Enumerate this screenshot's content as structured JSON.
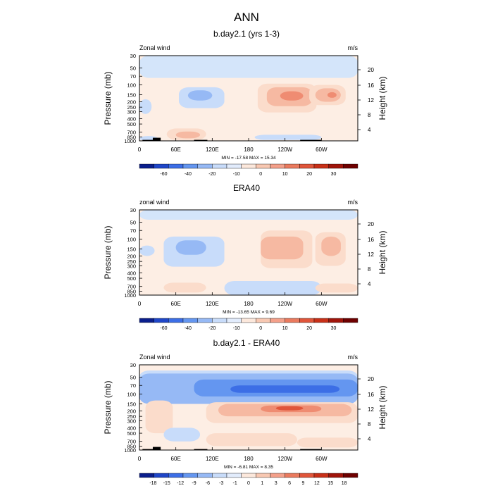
{
  "title": "ANN",
  "chart_data": [
    {
      "type": "heatmap",
      "title": "b.day2.1 (yrs 1-3)",
      "left_label": "Zonal wind",
      "right_label": "m/s",
      "ylabel": "Pressure (mb)",
      "ylabel_right": "Height (km)",
      "xticks": [
        "0",
        "60E",
        "120E",
        "180",
        "120W",
        "60W"
      ],
      "yticks": [
        "30",
        "50",
        "70",
        "100",
        "150",
        "200",
        "250",
        "300",
        "400",
        "500",
        "700",
        "850",
        "1000"
      ],
      "yticks_right": [
        "20",
        "16",
        "12",
        "8",
        "4"
      ],
      "stats": "MIN = -17.58   MAX =  15.34",
      "colorbar_labels": [
        "-60",
        "-40",
        "-20",
        "-10",
        "0",
        "10",
        "20",
        "30"
      ],
      "colorbar_colors": [
        "#0a1e8c",
        "#1f46c8",
        "#3c6ee6",
        "#6496f0",
        "#96b9f5",
        "#c8dcfa",
        "#e2ecfc",
        "#fce8dc",
        "#f8c8b2",
        "#f4a08a",
        "#ea7a5e",
        "#e0553a",
        "#c83018",
        "#a0140a",
        "#6e0000"
      ],
      "blobs": [
        {
          "lon": 0,
          "lon2": 360,
          "p": 30,
          "p2": 75,
          "color": "#d4e5fa"
        },
        {
          "lon": 195,
          "lon2": 292,
          "p": 95,
          "p2": 310,
          "color": "#fbdccb"
        },
        {
          "lon": 210,
          "lon2": 285,
          "p": 110,
          "p2": 240,
          "color": "#f6b9a2"
        },
        {
          "lon": 232,
          "lon2": 270,
          "p": 130,
          "p2": 190,
          "color": "#ef8c72"
        },
        {
          "lon": 280,
          "lon2": 340,
          "p": 100,
          "p2": 230,
          "color": "#fbdccb"
        },
        {
          "lon": 290,
          "lon2": 332,
          "p": 115,
          "p2": 200,
          "color": "#f6b9a2"
        },
        {
          "lon": 310,
          "lon2": 325,
          "p": 135,
          "p2": 170,
          "color": "#ef8c72"
        },
        {
          "lon": 65,
          "lon2": 140,
          "p": 110,
          "p2": 260,
          "color": "#c8dcfa"
        },
        {
          "lon": 80,
          "lon2": 120,
          "p": 125,
          "p2": 190,
          "color": "#96b9f5"
        },
        {
          "lon": 0,
          "lon2": 20,
          "p": 180,
          "p2": 330,
          "color": "#c8dcfa"
        },
        {
          "lon": 45,
          "lon2": 110,
          "p": 600,
          "p2": 960,
          "color": "#fbdccb"
        },
        {
          "lon": 60,
          "lon2": 100,
          "p": 680,
          "p2": 900,
          "color": "#f6b9a2"
        },
        {
          "lon": 190,
          "lon2": 300,
          "p": 780,
          "p2": 960,
          "color": "#c8dcfa"
        },
        {
          "lon": 0,
          "lon2": 30,
          "p": 820,
          "p2": 1000,
          "color": "#c8dcfa"
        }
      ],
      "topography": [
        {
          "lon": 5,
          "lon2": 28,
          "p": 960
        },
        {
          "lon": 22,
          "lon2": 35,
          "p": 880
        },
        {
          "lon": 90,
          "lon2": 112,
          "p": 960
        },
        {
          "lon": 265,
          "lon2": 300,
          "p": 960
        }
      ]
    },
    {
      "type": "heatmap",
      "title": "ERA40",
      "left_label": "zonal wind",
      "right_label": "m/s",
      "ylabel": "Pressure (mb)",
      "ylabel_right": "Height (km)",
      "xticks": [
        "0",
        "60E",
        "120E",
        "180",
        "120W",
        "60W"
      ],
      "yticks": [
        "30",
        "50",
        "70",
        "100",
        "150",
        "200",
        "250",
        "300",
        "400",
        "500",
        "700",
        "850",
        "1000"
      ],
      "yticks_right": [
        "20",
        "16",
        "12",
        "8",
        "4"
      ],
      "stats": "MIN = -13.65   MAX =   9.69",
      "colorbar_labels": [
        "-60",
        "-40",
        "-20",
        "-10",
        "0",
        "10",
        "20",
        "30"
      ],
      "colorbar_colors": [
        "#0a1e8c",
        "#1f46c8",
        "#3c6ee6",
        "#6496f0",
        "#96b9f5",
        "#c8dcfa",
        "#e2ecfc",
        "#fce8dc",
        "#f8c8b2",
        "#f4a08a",
        "#ea7a5e",
        "#e0553a",
        "#c83018",
        "#a0140a",
        "#6e0000"
      ],
      "blobs": [
        {
          "lon": 0,
          "lon2": 360,
          "p": 30,
          "p2": 45,
          "color": "#d4e5fa"
        },
        {
          "lon": 200,
          "lon2": 285,
          "p": 70,
          "p2": 330,
          "color": "#fbdccb"
        },
        {
          "lon": 200,
          "lon2": 270,
          "p": 90,
          "p2": 230,
          "color": "#f6b9a2"
        },
        {
          "lon": 290,
          "lon2": 340,
          "p": 75,
          "p2": 300,
          "color": "#fbdccb"
        },
        {
          "lon": 300,
          "lon2": 332,
          "p": 90,
          "p2": 200,
          "color": "#f6b9a2"
        },
        {
          "lon": 40,
          "lon2": 140,
          "p": 90,
          "p2": 310,
          "color": "#c8dcfa"
        },
        {
          "lon": 60,
          "lon2": 110,
          "p": 105,
          "p2": 190,
          "color": "#96b9f5"
        },
        {
          "lon": 0,
          "lon2": 25,
          "p": 130,
          "p2": 200,
          "color": "#c8dcfa"
        },
        {
          "lon": 40,
          "lon2": 110,
          "p": 600,
          "p2": 900,
          "color": "#fbdccb"
        },
        {
          "lon": 140,
          "lon2": 300,
          "p": 560,
          "p2": 1000,
          "color": "#c8dcfa"
        },
        {
          "lon": 290,
          "lon2": 360,
          "p": 620,
          "p2": 900,
          "color": "#fbdccb"
        }
      ],
      "topography": []
    },
    {
      "type": "heatmap",
      "title": "b.day2.1 - ERA40",
      "left_label": "Zonal wind",
      "right_label": "m/s",
      "ylabel": "Pressure (mb)",
      "ylabel_right": "Height (km)",
      "xticks": [
        "0",
        "60E",
        "120E",
        "180",
        "120W",
        "60W"
      ],
      "yticks": [
        "30",
        "50",
        "70",
        "100",
        "150",
        "200",
        "250",
        "300",
        "400",
        "500",
        "700",
        "850",
        "1000"
      ],
      "yticks_right": [
        "20",
        "16",
        "12",
        "8",
        "4"
      ],
      "stats": "MIN =  -6.81   MAX =   8.35",
      "colorbar_labels": [
        "-18",
        "-15",
        "-12",
        "-9",
        "-6",
        "-3",
        "-1",
        "0",
        "1",
        "3",
        "6",
        "9",
        "12",
        "15",
        "18"
      ],
      "colorbar_colors": [
        "#0a1e8c",
        "#1f46c8",
        "#3c6ee6",
        "#6496f0",
        "#96b9f5",
        "#c8dcfa",
        "#e2ecfc",
        "#fce8dc",
        "#f8c8b2",
        "#f4a08a",
        "#ea7a5e",
        "#e0553a",
        "#c83018",
        "#a0140a",
        "#6e0000"
      ],
      "blobs": [
        {
          "lon": 0,
          "lon2": 360,
          "p": 38,
          "p2": 62,
          "color": "#c8dcfa"
        },
        {
          "lon": 0,
          "lon2": 360,
          "p": 43,
          "p2": 150,
          "color": "#96b9f5"
        },
        {
          "lon": 90,
          "lon2": 360,
          "p": 55,
          "p2": 110,
          "color": "#6496f0"
        },
        {
          "lon": 150,
          "lon2": 330,
          "p": 70,
          "p2": 95,
          "color": "#3c6ee6"
        },
        {
          "lon": 110,
          "lon2": 360,
          "p": 140,
          "p2": 330,
          "color": "#fbdccb"
        },
        {
          "lon": 130,
          "lon2": 350,
          "p": 150,
          "p2": 250,
          "color": "#f6b9a2"
        },
        {
          "lon": 200,
          "lon2": 300,
          "p": 160,
          "p2": 210,
          "color": "#ef8c72"
        },
        {
          "lon": 225,
          "lon2": 270,
          "p": 165,
          "p2": 195,
          "color": "#e0553a"
        },
        {
          "lon": 10,
          "lon2": 55,
          "p": 130,
          "p2": 500,
          "color": "#fbdccb"
        },
        {
          "lon": 40,
          "lon2": 100,
          "p": 400,
          "p2": 700,
          "color": "#c8dcfa"
        },
        {
          "lon": 110,
          "lon2": 260,
          "p": 500,
          "p2": 850,
          "color": "#fbdccb"
        },
        {
          "lon": 260,
          "lon2": 360,
          "p": 600,
          "p2": 900,
          "color": "#fbdccb"
        }
      ],
      "topography": [
        {
          "lon": 5,
          "lon2": 28,
          "p": 960
        },
        {
          "lon": 22,
          "lon2": 35,
          "p": 880
        },
        {
          "lon": 90,
          "lon2": 112,
          "p": 960
        },
        {
          "lon": 265,
          "lon2": 300,
          "p": 960
        }
      ]
    }
  ]
}
